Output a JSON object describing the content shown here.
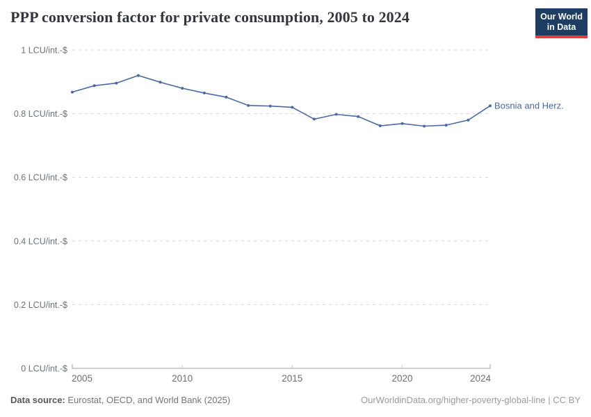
{
  "header": {
    "title": "PPP conversion factor for private consumption, 2005 to 2024",
    "logo": {
      "line1": "Our World",
      "line2": "in Data",
      "bg_color": "#1d3d63",
      "accent_color": "#e0403a"
    }
  },
  "chart_data": {
    "type": "line",
    "title": "PPP conversion factor for private consumption, 2005 to 2024",
    "xlabel": "",
    "ylabel": "",
    "x": [
      2005,
      2006,
      2007,
      2008,
      2009,
      2010,
      2011,
      2012,
      2013,
      2014,
      2015,
      2016,
      2017,
      2018,
      2019,
      2020,
      2021,
      2022,
      2023,
      2024
    ],
    "series": [
      {
        "name": "Bosnia and Herz.",
        "color": "#4a69a2",
        "values": [
          0.868,
          0.888,
          0.896,
          0.92,
          0.899,
          0.88,
          0.865,
          0.852,
          0.826,
          0.824,
          0.82,
          0.783,
          0.798,
          0.791,
          0.762,
          0.769,
          0.761,
          0.764,
          0.78,
          0.825
        ]
      }
    ],
    "xlim": [
      2005,
      2024
    ],
    "ylim": [
      0,
      1
    ],
    "xticks": [
      2005,
      2010,
      2015,
      2020,
      2024
    ],
    "yticks": [
      0,
      0.2,
      0.4,
      0.6,
      0.8,
      1
    ],
    "ytick_suffix": " LCU/int.-$",
    "grid": "horizontal-dashed",
    "legend_position": "end-of-line-label"
  },
  "footer": {
    "datasource_label": "Data source:",
    "datasource_text": " Eurostat, OECD, and World Bank (2025)",
    "credit": "OurWorldinData.org/higher-poverty-global-line | CC BY"
  }
}
